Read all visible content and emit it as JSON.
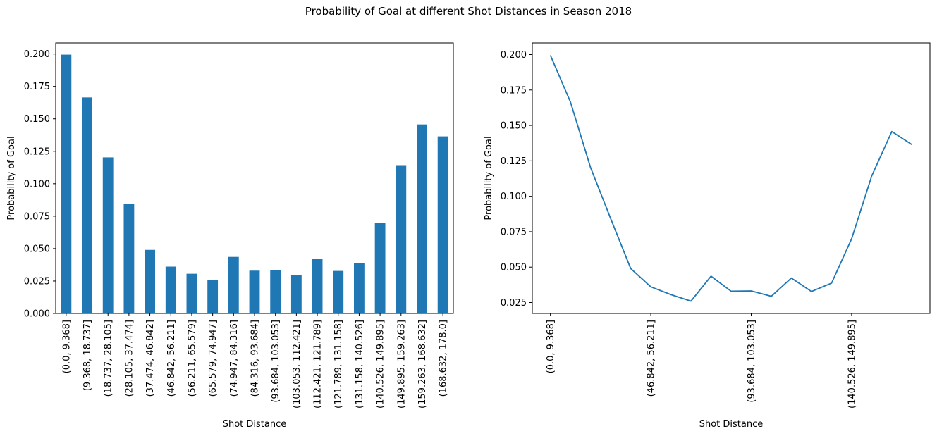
{
  "figure": {
    "title": "Probability of Goal at different Shot Distances in Season 2018"
  },
  "chart_data": [
    {
      "type": "bar",
      "color": "#1f77b4",
      "categories": [
        "(0.0, 9.368]",
        "(9.368, 18.737]",
        "(18.737, 28.105]",
        "(28.105, 37.474]",
        "(37.474, 46.842]",
        "(46.842, 56.211]",
        "(56.211, 65.579]",
        "(65.579, 74.947]",
        "(74.947, 84.316]",
        "(84.316, 93.684]",
        "(93.684, 103.053]",
        "(103.053, 112.421]",
        "(112.421, 121.789]",
        "(121.789, 131.158]",
        "(131.158, 140.526]",
        "(140.526, 149.895]",
        "(149.895, 159.263]",
        "(159.263, 168.632]",
        "(168.632, 178.0]"
      ],
      "values": [
        0.1995,
        0.1665,
        0.1203,
        0.0843,
        0.049,
        0.0361,
        0.0306,
        0.026,
        0.0436,
        0.033,
        0.0332,
        0.0294,
        0.0423,
        0.0328,
        0.0387,
        0.07,
        0.1143,
        0.1457,
        0.1365
      ],
      "ylim": [
        0,
        0.2085
      ],
      "yticks": [
        "0.000",
        "0.025",
        "0.050",
        "0.075",
        "0.100",
        "0.125",
        "0.150",
        "0.175",
        "0.200"
      ],
      "xlabel": "Shot Distance",
      "ylabel": "Probability of Goal",
      "grid": false
    },
    {
      "type": "line",
      "color": "#1f77b4",
      "categories": [
        "(0.0, 9.368]",
        "(9.368, 18.737]",
        "(18.737, 28.105]",
        "(28.105, 37.474]",
        "(37.474, 46.842]",
        "(46.842, 56.211]",
        "(56.211, 65.579]",
        "(65.579, 74.947]",
        "(74.947, 84.316]",
        "(84.316, 93.684]",
        "(93.684, 103.053]",
        "(103.053, 112.421]",
        "(112.421, 121.789]",
        "(121.789, 131.158]",
        "(131.158, 140.526]",
        "(140.526, 149.895]",
        "(149.895, 159.263]",
        "(159.263, 168.632]",
        "(168.632, 178.0]"
      ],
      "values": [
        0.1995,
        0.1665,
        0.1203,
        0.0843,
        0.049,
        0.0361,
        0.0306,
        0.026,
        0.0436,
        0.033,
        0.0332,
        0.0294,
        0.0423,
        0.0328,
        0.0387,
        0.07,
        0.1143,
        0.1457,
        0.1365
      ],
      "labeled_ticks": [
        "(0.0, 9.368]",
        "(46.842, 56.211]",
        "(93.684, 103.053]",
        "(140.526, 149.895]"
      ],
      "ylim": [
        0.0173,
        0.2082
      ],
      "yticks": [
        "0.025",
        "0.050",
        "0.075",
        "0.100",
        "0.125",
        "0.150",
        "0.175",
        "0.200"
      ],
      "xlabel": "Shot Distance",
      "ylabel": "Probability of Goal",
      "grid": false
    }
  ]
}
